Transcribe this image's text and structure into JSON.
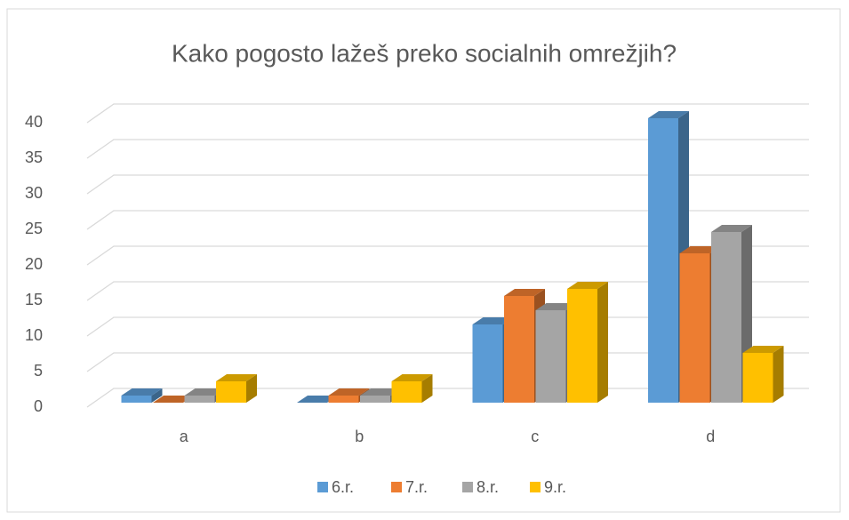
{
  "chart_data": {
    "type": "bar3d",
    "title": "Kako pogosto lažeš preko socialnih omrežjih?",
    "categories": [
      "a",
      "b",
      "c",
      "d"
    ],
    "series": [
      {
        "name": "6.r.",
        "color": "#5b9bd5",
        "values": [
          1,
          0,
          11,
          40
        ]
      },
      {
        "name": "7.r.",
        "color": "#ed7d31",
        "values": [
          0,
          1,
          15,
          21
        ]
      },
      {
        "name": "8.r.",
        "color": "#a5a5a5",
        "values": [
          1,
          1,
          13,
          24
        ]
      },
      {
        "name": "9.r.",
        "color": "#ffc000",
        "values": [
          3,
          3,
          16,
          7
        ]
      }
    ],
    "ylim": [
      0,
      40
    ],
    "yticks": [
      0,
      5,
      10,
      15,
      20,
      25,
      30,
      35,
      40
    ],
    "grid": true,
    "legend": "bottom"
  }
}
